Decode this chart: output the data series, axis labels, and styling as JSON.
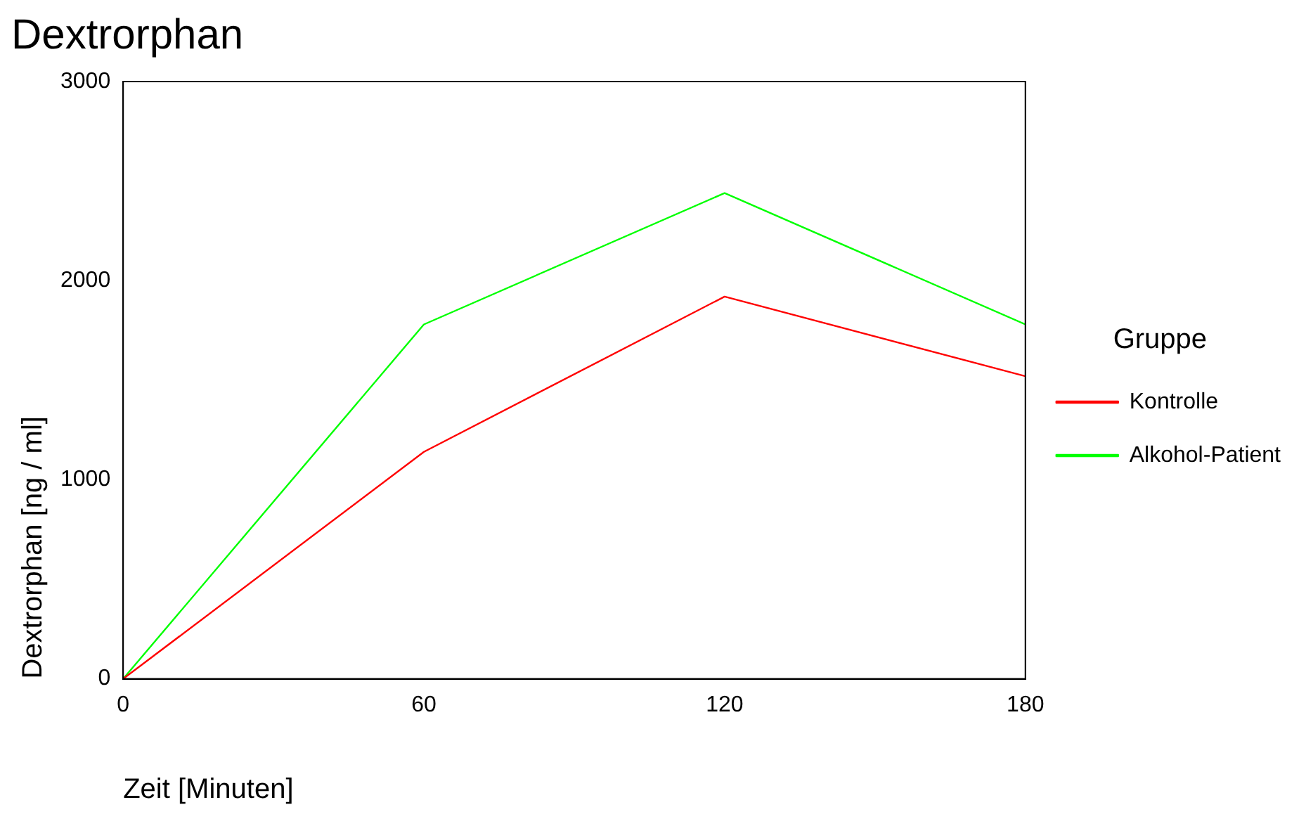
{
  "chart_data": {
    "type": "line",
    "title": "Dextrorphan",
    "xlabel": "Zeit [Minuten]",
    "ylabel": "Dextrorphan [ng / ml]",
    "legend_title": "Gruppe",
    "x": [
      0,
      60,
      120,
      180
    ],
    "series": [
      {
        "name": "Kontrolle",
        "color": "#ff0000",
        "values": [
          0,
          1140,
          1920,
          1520
        ]
      },
      {
        "name": "Alkohol-Patient",
        "color": "#00ff00",
        "values": [
          0,
          1780,
          2440,
          1780
        ]
      }
    ],
    "xlim": [
      0,
      180
    ],
    "xticks": [
      0,
      60,
      120,
      180
    ],
    "ylim": [
      0,
      3000
    ],
    "yticks": [
      0,
      1000,
      2000,
      3000
    ],
    "grid": false,
    "legend": "right",
    "marker": "none",
    "line_style": "solid"
  }
}
